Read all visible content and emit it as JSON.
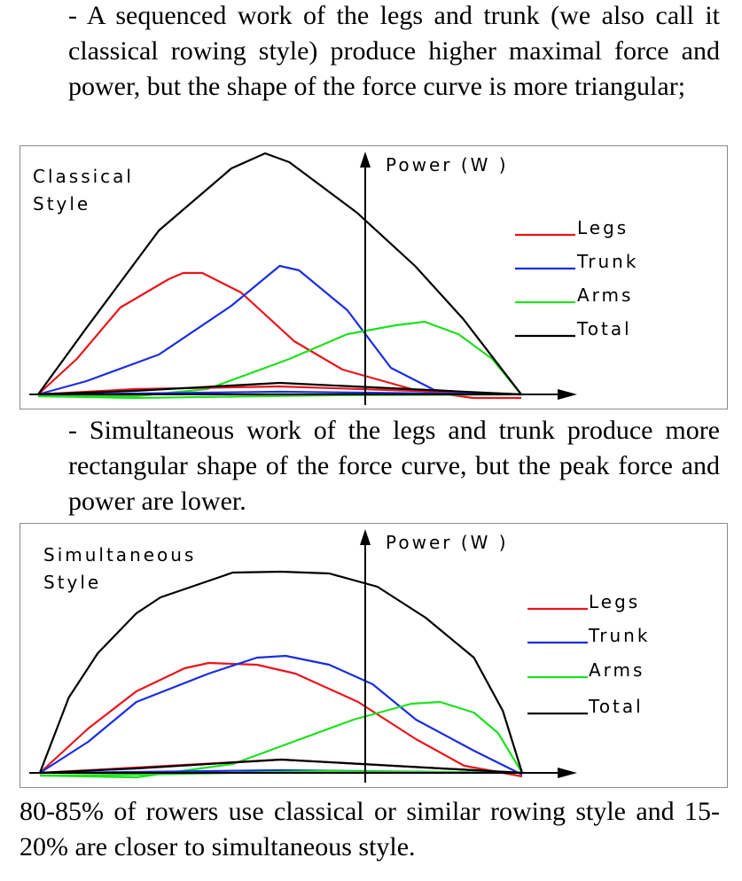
{
  "paragraphs": {
    "p1": "- A sequenced work of the legs and trunk (we also call it classical rowing style) produce higher maximal force and power, but the shape of the force curve is more triangular;",
    "p2": "- Simultaneous work of the legs and trunk produce more rectangular shape of the force curve, but the peak force and power are lower.",
    "p3": "80-85% of rowers use classical or similar rowing style and 15-20% are closer to simultaneous style."
  },
  "chart_data": [
    {
      "type": "line",
      "title_lines": [
        "Classical",
        "Style"
      ],
      "ylabel": "Power (W )",
      "legend_position": "right",
      "colors": {
        "Legs": "#e8151b",
        "Trunk": "#1a2ee0",
        "Arms": "#1fe01f",
        "Total": "#000000"
      },
      "series": [
        {
          "name": "Legs",
          "values": [
            [
              0,
              0
            ],
            [
              8,
              40
            ],
            [
              17,
              98
            ],
            [
              27,
              130
            ],
            [
              30,
              137
            ],
            [
              34,
              137
            ],
            [
              42,
              115
            ],
            [
              53,
              60
            ],
            [
              63,
              28
            ],
            [
              78,
              5
            ],
            [
              90,
              -4
            ],
            [
              100,
              -4
            ]
          ]
        },
        {
          "name": "Trunk",
          "values": [
            [
              0,
              0
            ],
            [
              10,
              15
            ],
            [
              25,
              45
            ],
            [
              40,
              100
            ],
            [
              50,
              145
            ],
            [
              54,
              140
            ],
            [
              64,
              95
            ],
            [
              73,
              30
            ],
            [
              82,
              5
            ],
            [
              90,
              2
            ],
            [
              100,
              0
            ]
          ]
        },
        {
          "name": "Arms",
          "values": [
            [
              0,
              -2
            ],
            [
              20,
              -2
            ],
            [
              35,
              6
            ],
            [
              52,
              40
            ],
            [
              64,
              68
            ],
            [
              74,
              78
            ],
            [
              80,
              82
            ],
            [
              87,
              68
            ],
            [
              94,
              40
            ],
            [
              100,
              0
            ]
          ]
        },
        {
          "name": "Total",
          "values": [
            [
              0,
              0
            ],
            [
              10,
              75
            ],
            [
              25,
              185
            ],
            [
              40,
              255
            ],
            [
              47,
              272
            ],
            [
              52,
              262
            ],
            [
              66,
              205
            ],
            [
              78,
              145
            ],
            [
              88,
              85
            ],
            [
              100,
              0
            ]
          ]
        },
        {
          "name": "Legs (return)",
          "values": [
            [
              100,
              0
            ],
            [
              50,
              9
            ],
            [
              20,
              6
            ],
            [
              0,
              0
            ]
          ]
        },
        {
          "name": "Trunk (return)",
          "values": [
            [
              100,
              0
            ],
            [
              50,
              3
            ],
            [
              20,
              1
            ],
            [
              0,
              0
            ]
          ]
        },
        {
          "name": "Arms (return)",
          "values": [
            [
              100,
              0
            ],
            [
              60,
              -1
            ],
            [
              20,
              -4
            ],
            [
              0,
              -2
            ]
          ]
        },
        {
          "name": "Total (return)",
          "values": [
            [
              100,
              0
            ],
            [
              50,
              13
            ],
            [
              20,
              4
            ],
            [
              0,
              0
            ]
          ]
        }
      ]
    },
    {
      "type": "line",
      "title_lines": [
        "Simultaneous",
        "Style"
      ],
      "ylabel": "Power (W )",
      "legend_position": "right",
      "colors": {
        "Legs": "#e8151b",
        "Trunk": "#1a2ee0",
        "Arms": "#1fe01f",
        "Total": "#000000"
      },
      "series": [
        {
          "name": "Legs",
          "values": [
            [
              0,
              0
            ],
            [
              10,
              50
            ],
            [
              20,
              92
            ],
            [
              30,
              118
            ],
            [
              35,
              124
            ],
            [
              45,
              122
            ],
            [
              53,
              112
            ],
            [
              66,
              80
            ],
            [
              78,
              38
            ],
            [
              88,
              8
            ],
            [
              100,
              -4
            ]
          ]
        },
        {
          "name": "Trunk",
          "values": [
            [
              0,
              0
            ],
            [
              10,
              35
            ],
            [
              20,
              80
            ],
            [
              35,
              112
            ],
            [
              45,
              130
            ],
            [
              51,
              132
            ],
            [
              60,
              122
            ],
            [
              69,
              100
            ],
            [
              78,
              60
            ],
            [
              90,
              25
            ],
            [
              100,
              -2
            ]
          ]
        },
        {
          "name": "Arms",
          "values": [
            [
              0,
              -3
            ],
            [
              20,
              -5
            ],
            [
              40,
              10
            ],
            [
              65,
              60
            ],
            [
              77,
              78
            ],
            [
              83,
              80
            ],
            [
              90,
              68
            ],
            [
              95,
              45
            ],
            [
              100,
              0
            ]
          ]
        },
        {
          "name": "Total",
          "values": [
            [
              0,
              0
            ],
            [
              6,
              85
            ],
            [
              12,
              135
            ],
            [
              20,
              180
            ],
            [
              25,
              198
            ],
            [
              40,
              226
            ],
            [
              50,
              227
            ],
            [
              60,
              225
            ],
            [
              70,
              210
            ],
            [
              80,
              175
            ],
            [
              90,
              130
            ],
            [
              96,
              70
            ],
            [
              100,
              0
            ]
          ]
        },
        {
          "name": "Legs (return)",
          "values": [
            [
              100,
              0
            ],
            [
              50,
              15
            ],
            [
              20,
              6
            ],
            [
              0,
              0
            ]
          ]
        },
        {
          "name": "Trunk (return)",
          "values": [
            [
              100,
              0
            ],
            [
              50,
              3
            ],
            [
              20,
              1
            ],
            [
              0,
              0
            ]
          ]
        },
        {
          "name": "Arms (return)",
          "values": [
            [
              100,
              0
            ],
            [
              60,
              2
            ],
            [
              20,
              -2
            ],
            [
              0,
              -3
            ]
          ]
        },
        {
          "name": "Total (return)",
          "values": [
            [
              100,
              0
            ],
            [
              50,
              15
            ],
            [
              20,
              5
            ],
            [
              0,
              0
            ]
          ]
        }
      ]
    }
  ]
}
